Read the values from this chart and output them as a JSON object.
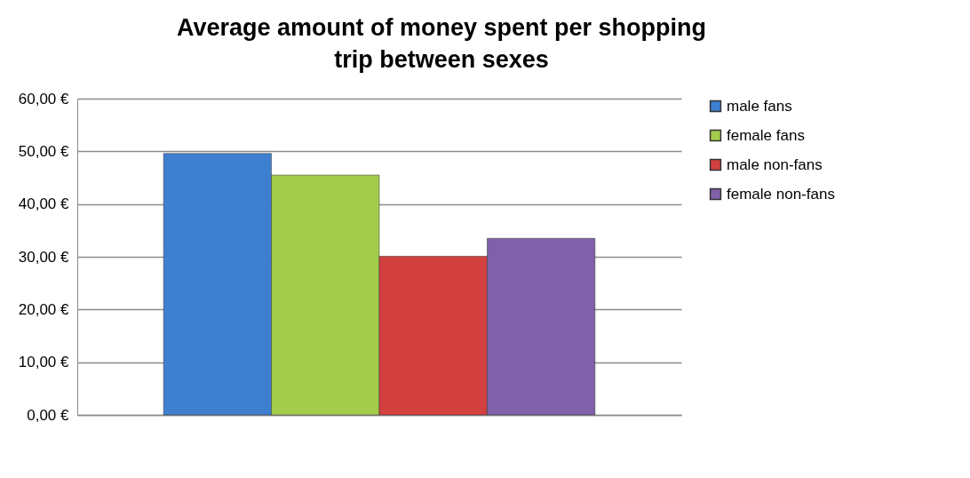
{
  "chart_data": {
    "type": "bar",
    "title": "Average amount of money spent per shopping trip between sexes",
    "categories": [
      null
    ],
    "series": [
      {
        "name": "male fans",
        "color": "#3f7fd0",
        "values": [
          49.6
        ]
      },
      {
        "name": "female fans",
        "color": "#a3cc4b",
        "values": [
          45.5
        ]
      },
      {
        "name": "male non-fans",
        "color": "#d24040",
        "values": [
          30.1
        ]
      },
      {
        "name": "female non-fans",
        "color": "#8060a8",
        "values": [
          33.5
        ]
      }
    ],
    "ylim": [
      0,
      60
    ],
    "yticks": [
      {
        "value": 0,
        "label": "0,00 €"
      },
      {
        "value": 10,
        "label": "10,00 €"
      },
      {
        "value": 20,
        "label": "20,00 €"
      },
      {
        "value": 30,
        "label": "30,00 €"
      },
      {
        "value": 40,
        "label": "40,00 €"
      },
      {
        "value": 50,
        "label": "50,00 €"
      },
      {
        "value": 60,
        "label": "60,00 €"
      }
    ],
    "grid": "y",
    "legend": "right"
  }
}
